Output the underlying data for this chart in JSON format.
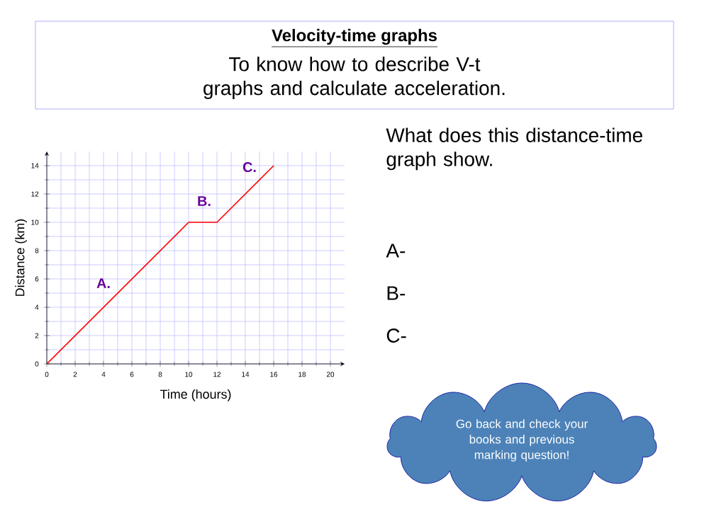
{
  "chart_data": {
    "type": "line",
    "title": "Velocity-time graphs",
    "subtitle": "To know how to describe V-t graphs and calculate acceleration.",
    "xlabel": "Time (hours)",
    "ylabel": "Distance (km)",
    "x": [
      0,
      10,
      12,
      16
    ],
    "series": [
      {
        "color": "#ff0000",
        "values": [
          0,
          10,
          10,
          14
        ]
      }
    ],
    "xlim": [
      0,
      21
    ],
    "ylim": [
      0,
      15
    ],
    "xticks": [
      0,
      2,
      4,
      6,
      8,
      10,
      12,
      14,
      16,
      18,
      20
    ],
    "yticks": [
      0,
      2,
      4,
      6,
      8,
      10,
      12,
      14
    ],
    "grid": true,
    "marker": "none",
    "annotations": [
      "A.",
      "B.",
      "C.",
      "What does this distance-time graph show.",
      "A-",
      "B-",
      "C-",
      "Go back and check your books and previous marking question!"
    ]
  }
}
